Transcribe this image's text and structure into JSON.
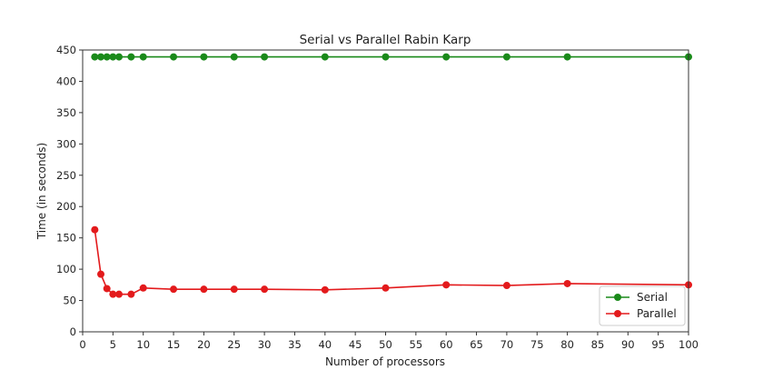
{
  "chart_data": {
    "type": "line",
    "title": "Serial vs Parallel Rabin Karp",
    "xlabel": "Number of processors",
    "ylabel": "Time (in seconds)",
    "xlim": [
      0,
      100
    ],
    "ylim": [
      0,
      450
    ],
    "xticks": [
      0,
      5,
      10,
      15,
      20,
      25,
      30,
      35,
      40,
      45,
      50,
      55,
      60,
      65,
      70,
      75,
      80,
      85,
      90,
      95,
      100
    ],
    "yticks": [
      0,
      50,
      100,
      150,
      200,
      250,
      300,
      350,
      400,
      450
    ],
    "grid": false,
    "legend_position": "bottom-right",
    "x": [
      2,
      3,
      4,
      5,
      6,
      8,
      10,
      15,
      20,
      25,
      30,
      40,
      50,
      60,
      70,
      80,
      100
    ],
    "series": [
      {
        "name": "Serial",
        "color": "#1a8a1a",
        "values": [
          439,
          439,
          439,
          439,
          439,
          439,
          439,
          439,
          439,
          439,
          439,
          439,
          439,
          439,
          439,
          439,
          439
        ]
      },
      {
        "name": "Parallel",
        "color": "#e31a1c",
        "values": [
          163,
          92,
          69,
          60,
          60,
          60,
          70,
          68,
          68,
          68,
          68,
          67,
          70,
          75,
          74,
          77,
          75
        ]
      }
    ]
  }
}
